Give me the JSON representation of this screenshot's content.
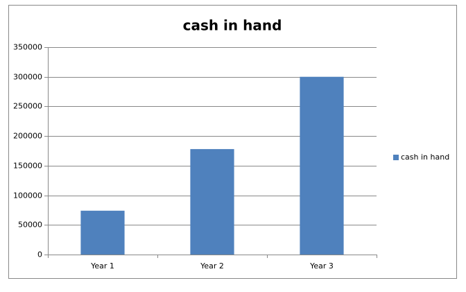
{
  "chart_data": {
    "type": "bar",
    "title": "cash in hand",
    "categories": [
      "Year 1",
      "Year 2",
      "Year 3"
    ],
    "series": [
      {
        "name": "cash in hand",
        "color": "#4f81bd",
        "values": [
          74000,
          178000,
          300000
        ]
      }
    ],
    "ylim": [
      0,
      350000
    ],
    "yticks": [
      0,
      50000,
      100000,
      150000,
      200000,
      250000,
      300000,
      350000
    ],
    "grid": true,
    "legend": "right"
  }
}
